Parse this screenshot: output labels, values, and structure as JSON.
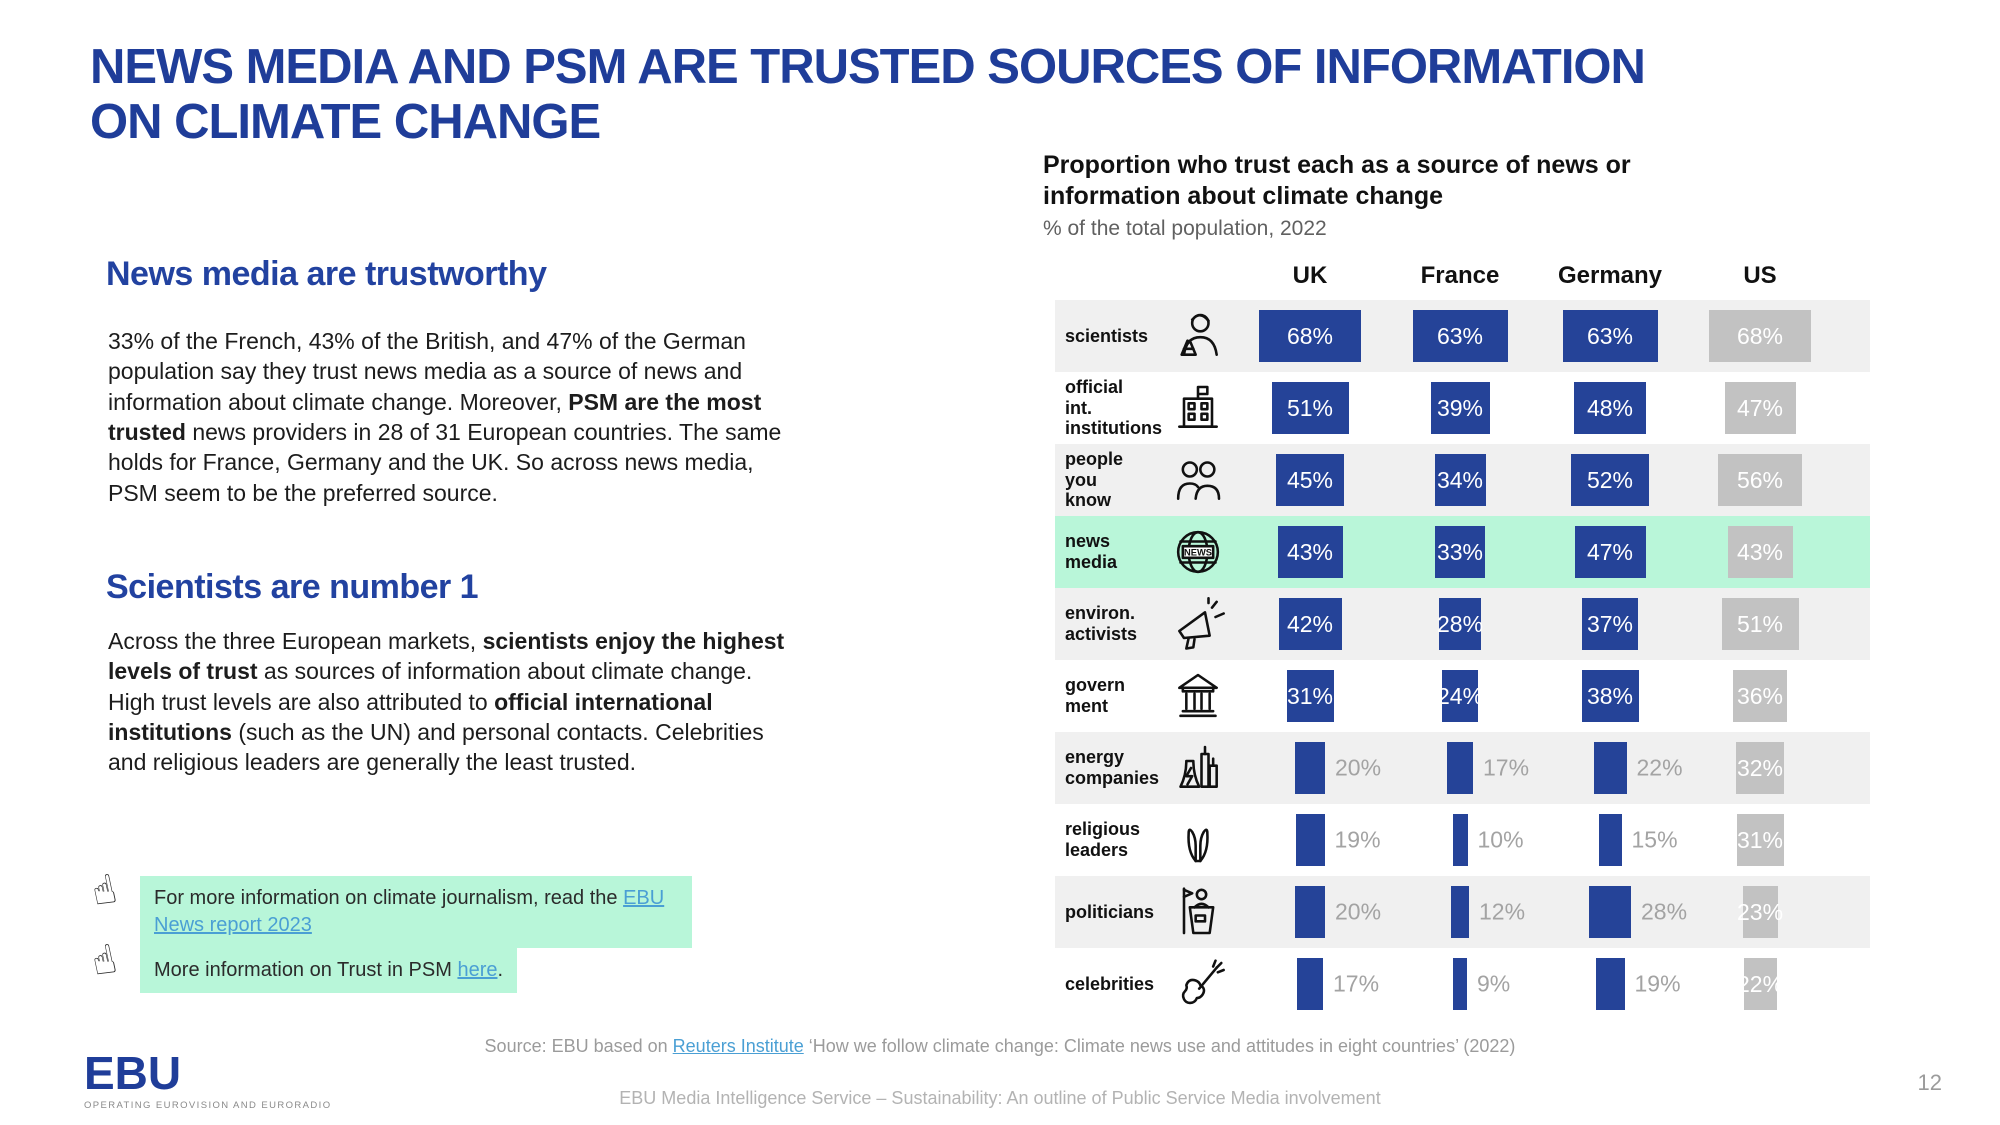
{
  "slide": {
    "title_line1": "NEWS MEDIA AND PSM ARE TRUSTED SOURCES OF INFORMATION",
    "title_line2": "ON CLIMATE CHANGE",
    "page_number": "12"
  },
  "left": {
    "section1": {
      "heading": "News media are trustworthy",
      "t1": "33% of the French, 43% of the British, and 47% of the German population say they trust news media as a source of news and information about climate change. Moreover, ",
      "b1": "PSM are the most trusted",
      "t2": " news providers in 28 of 31 European countries. The same holds for France, Germany and the UK. So across news media, PSM seem to be the preferred source."
    },
    "section2": {
      "heading": "Scientists are number 1",
      "t1": "Across the three European markets, ",
      "b1": "scientists enjoy the highest levels of trust",
      "t2": " as sources of information about climate change. High trust levels are also attributed to ",
      "b2": "official international institutions",
      "t3": " (such as the UN) and personal contacts. Celebrities and religious leaders are generally the least trusted."
    }
  },
  "callouts": {
    "hand_icon": "☝",
    "c1_text": "For more information on climate journalism, read the ",
    "c1_link": "EBU News report 2023",
    "c2_text": "More information on Trust in PSM ",
    "c2_link": "here",
    "c2_suffix": "."
  },
  "chart": {
    "title": "Proportion who trust each as a source of news or information about climate change",
    "subtitle": "% of the total population, 2022",
    "columns": [
      "UK",
      "France",
      "Germany",
      "US"
    ],
    "rows": [
      {
        "label": "scientists",
        "icon": "scientist-icon",
        "values": [
          68,
          63,
          63,
          68
        ],
        "eu_labels": "inside",
        "highlight": false
      },
      {
        "label": "official\nint.\ninstitutions",
        "icon": "institution-icon",
        "values": [
          51,
          39,
          48,
          47
        ],
        "eu_labels": "inside",
        "highlight": false
      },
      {
        "label": "people\nyou\nknow",
        "icon": "people-icon",
        "values": [
          45,
          34,
          52,
          56
        ],
        "eu_labels": "inside",
        "highlight": false
      },
      {
        "label": "news\nmedia",
        "icon": "news-globe-icon",
        "values": [
          43,
          33,
          47,
          43
        ],
        "eu_labels": "inside",
        "highlight": true
      },
      {
        "label": "environ.\nactivists",
        "icon": "megaphone-icon",
        "values": [
          42,
          28,
          37,
          51
        ],
        "eu_labels": "inside",
        "highlight": false
      },
      {
        "label": "govern\nment",
        "icon": "government-icon",
        "values": [
          31,
          24,
          38,
          36
        ],
        "eu_labels": "inside",
        "highlight": false
      },
      {
        "label": "energy\ncompanies",
        "icon": "energy-icon",
        "values": [
          20,
          17,
          22,
          32
        ],
        "eu_labels": "outside",
        "highlight": false
      },
      {
        "label": "religious\nleaders",
        "icon": "praying-hands-icon",
        "values": [
          19,
          10,
          15,
          31
        ],
        "eu_labels": "outside",
        "highlight": false
      },
      {
        "label": "politicians",
        "icon": "politician-icon",
        "values": [
          20,
          12,
          28,
          23
        ],
        "eu_labels": "outside",
        "highlight": false
      },
      {
        "label": "celebrities",
        "icon": "guitar-icon",
        "values": [
          17,
          9,
          19,
          22
        ],
        "eu_labels": "outside",
        "highlight": false
      }
    ],
    "colors": {
      "europe_bar": "#254398",
      "us_bar": "#c2c2c2",
      "highlight_row": "#b9f6d9",
      "alt_row": "#f0f0f0",
      "heading_blue": "#1f3d99",
      "link_blue": "#4a9fd4",
      "callout_mint": "#b8f6d9"
    }
  },
  "chart_data": {
    "type": "bar",
    "title": "Proportion who trust each as a source of news or information about climate change",
    "subtitle": "% of the total population, 2022",
    "unit": "%",
    "categories": [
      "scientists",
      "official int. institutions",
      "people you know",
      "news media",
      "environ. activists",
      "government",
      "energy companies",
      "religious leaders",
      "politicians",
      "celebrities"
    ],
    "series": [
      {
        "name": "UK",
        "values": [
          68,
          51,
          45,
          43,
          42,
          31,
          20,
          19,
          20,
          17
        ]
      },
      {
        "name": "France",
        "values": [
          63,
          39,
          34,
          33,
          28,
          24,
          17,
          10,
          12,
          9
        ]
      },
      {
        "name": "Germany",
        "values": [
          63,
          48,
          52,
          47,
          37,
          38,
          22,
          15,
          28,
          19
        ]
      },
      {
        "name": "US",
        "values": [
          68,
          47,
          56,
          43,
          51,
          36,
          32,
          31,
          23,
          22
        ]
      }
    ],
    "highlighted_category": "news media",
    "value_range": [
      0,
      100
    ],
    "legend_position": "top-columns",
    "grid": false
  },
  "footer": {
    "source_prefix": "Source: EBU based on ",
    "source_link": "Reuters Institute",
    "source_suffix": " ‘How we follow climate change: Climate news use and attitudes in eight countries’ (2022)",
    "center_text": "EBU Media Intelligence Service – Sustainability: An outline of Public Service Media involvement",
    "logo_text": "EBU",
    "logo_tagline": "OPERATING EUROVISION AND EURORADIO"
  }
}
